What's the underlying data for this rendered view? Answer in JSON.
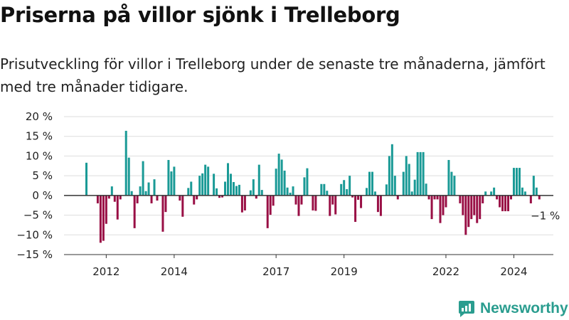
{
  "title": "Priserna på villor sjönk i Trelleborg",
  "subtitle": "Prisutveckling för villor i Trelleborg under de senaste tre månaderna, jämfört med tre månader tidigare.",
  "brand": {
    "name": "Newsworthy",
    "icon": "newsworthy-logo-icon"
  },
  "colors": {
    "positive": "#1a9a96",
    "negative": "#990f45",
    "grid": "#dddddd",
    "axis": "#333333",
    "text": "#222222"
  },
  "chart_data": {
    "type": "bar",
    "title": "Priserna på villor sjönk i Trelleborg",
    "xlabel": "",
    "ylabel": "",
    "ylim": [
      -15,
      20
    ],
    "yticks": [
      -15,
      -10,
      -5,
      0,
      5,
      10,
      15,
      20
    ],
    "y_tick_labels": [
      "−15 %",
      "−10 %",
      "−5 %",
      "0 %",
      "5 %",
      "10 %",
      "15 %",
      "20 %"
    ],
    "x_tick_labels": [
      {
        "label": "2012",
        "month": "2012-01"
      },
      {
        "label": "2014",
        "month": "2014-01"
      },
      {
        "label": "2017",
        "month": "2017-01"
      },
      {
        "label": "2019",
        "month": "2019-01"
      },
      {
        "label": "2022",
        "month": "2022-01"
      },
      {
        "label": "2024",
        "month": "2024-01"
      }
    ],
    "grid": true,
    "legend": "none",
    "annotations": [
      {
        "text": "−1 %",
        "month": "2024-12"
      }
    ],
    "start_month": "2011-06",
    "values": [
      8.3,
      0,
      0,
      0,
      -2,
      -12,
      -11.5,
      -7.2,
      -0.8,
      2.3,
      -1.6,
      -6.1,
      -1,
      0,
      16.4,
      9.6,
      1.1,
      -8.3,
      -2,
      2.3,
      8.7,
      1.1,
      3.3,
      -2,
      4.1,
      -1.3,
      0,
      -9.2,
      -4.2,
      9,
      6.1,
      7.3,
      0,
      -1.3,
      -5.4,
      0,
      1.9,
      3.5,
      -2.3,
      -1,
      5,
      5.6,
      7.8,
      7.3,
      0,
      5.5,
      1.8,
      -0.6,
      -0.5,
      3.5,
      8.2,
      5.5,
      3.4,
      2.4,
      2.7,
      -4.3,
      -3.8,
      0,
      1.3,
      4.1,
      -0.8,
      7.8,
      1.4,
      0,
      -8.3,
      -4.9,
      -2.6,
      6.8,
      10.6,
      9.1,
      6.3,
      2,
      0.7,
      2.3,
      -2.3,
      -5.2,
      -2.3,
      4.6,
      6.9,
      0,
      -3.8,
      -3.9,
      0,
      2.9,
      2.9,
      1.2,
      -5.2,
      -2.3,
      -4.8,
      0,
      2.9,
      3.9,
      1.6,
      5,
      -0.5,
      -6.7,
      -1.1,
      -3.2,
      0,
      1.9,
      6,
      6,
      1,
      -4.2,
      -5.2,
      0,
      2.8,
      10,
      13,
      5,
      -1,
      0,
      6,
      10,
      8,
      1,
      4,
      11,
      11,
      11,
      3,
      -1,
      -6,
      -1,
      -1,
      -7,
      -5,
      -3,
      9,
      6,
      5,
      0,
      -2,
      -5,
      -10,
      -8,
      -6,
      -5,
      -7,
      -6,
      -2,
      1,
      0,
      1,
      2,
      -1,
      -3,
      -4,
      -4,
      -4,
      -1,
      7,
      7,
      7,
      2,
      1,
      0,
      -2,
      5,
      2,
      -1
    ]
  }
}
